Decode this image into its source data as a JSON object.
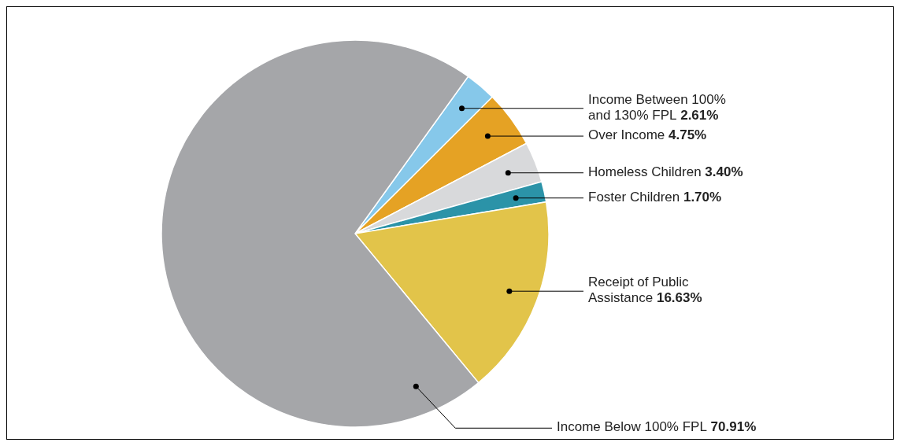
{
  "chart_data": {
    "type": "pie",
    "categories": [
      "Income Between 100% and 130% FPL",
      "Over Income",
      "Homeless Children",
      "Foster Children",
      "Receipt of Public Assistance",
      "Income Below 100% FPL"
    ],
    "values": [
      2.61,
      4.75,
      3.4,
      1.7,
      16.63,
      70.91
    ],
    "value_labels": [
      "2.61%",
      "4.75%",
      "3.40%",
      "1.70%",
      "16.63%",
      "70.91%"
    ],
    "colors": [
      "#86c8ea",
      "#e5a224",
      "#d8d9db",
      "#2b93a8",
      "#e2c44a",
      "#a5a6a9"
    ]
  }
}
